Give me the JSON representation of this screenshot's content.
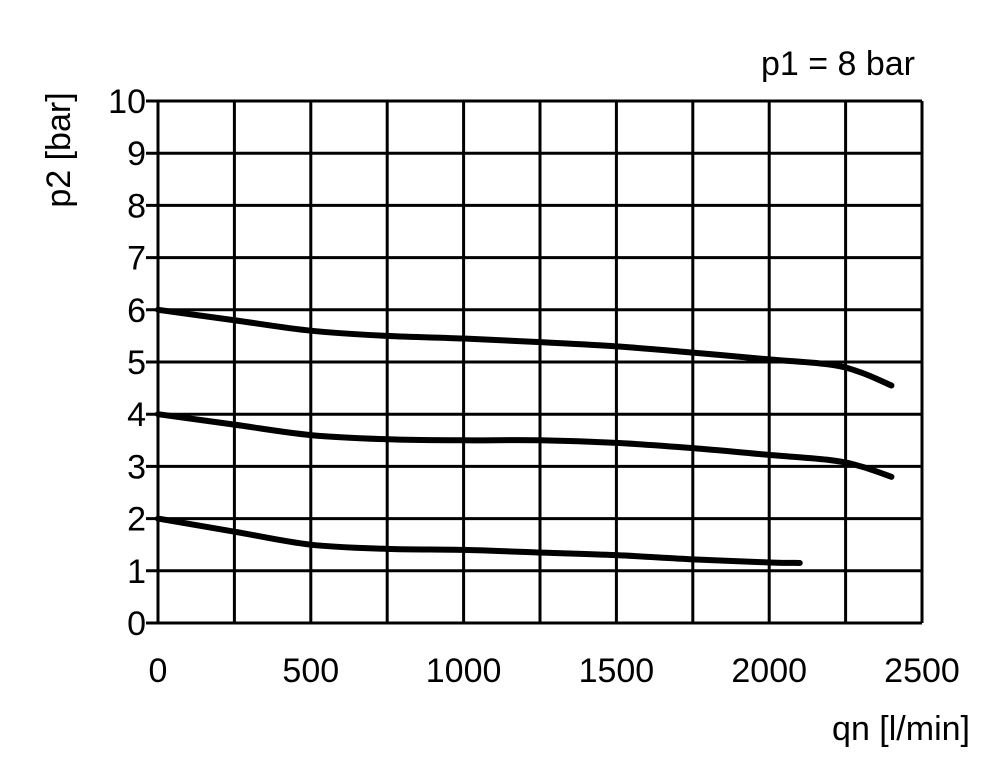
{
  "chart_data": {
    "type": "line",
    "annotation": "p1 = 8 bar",
    "xlabel": "qn [l/min]",
    "ylabel": "p2 [bar]",
    "xlim": [
      0,
      2500
    ],
    "ylim": [
      0,
      10
    ],
    "grid": true,
    "x_grid_step": 250,
    "y_grid_step": 1,
    "x_ticks": [
      "0",
      "500",
      "1000",
      "1500",
      "2000",
      "2500"
    ],
    "y_ticks": [
      "0",
      "1",
      "2",
      "3",
      "4",
      "5",
      "6",
      "7",
      "8",
      "9",
      "10"
    ],
    "line_color": "#000000",
    "series": [
      {
        "x": [
          0,
          250,
          500,
          750,
          1000,
          1250,
          1500,
          1750,
          2000,
          2200,
          2300,
          2400
        ],
        "y": [
          6.0,
          5.8,
          5.6,
          5.5,
          5.45,
          5.38,
          5.3,
          5.18,
          5.05,
          4.95,
          4.8,
          4.55
        ]
      },
      {
        "x": [
          0,
          250,
          500,
          750,
          1000,
          1250,
          1500,
          1750,
          2000,
          2200,
          2300,
          2400
        ],
        "y": [
          4.0,
          3.8,
          3.6,
          3.52,
          3.5,
          3.5,
          3.45,
          3.35,
          3.22,
          3.12,
          3.0,
          2.8
        ]
      },
      {
        "x": [
          0,
          250,
          500,
          750,
          1000,
          1250,
          1500,
          1750,
          2000,
          2100
        ],
        "y": [
          2.0,
          1.75,
          1.5,
          1.42,
          1.4,
          1.35,
          1.3,
          1.22,
          1.16,
          1.15
        ]
      }
    ]
  }
}
